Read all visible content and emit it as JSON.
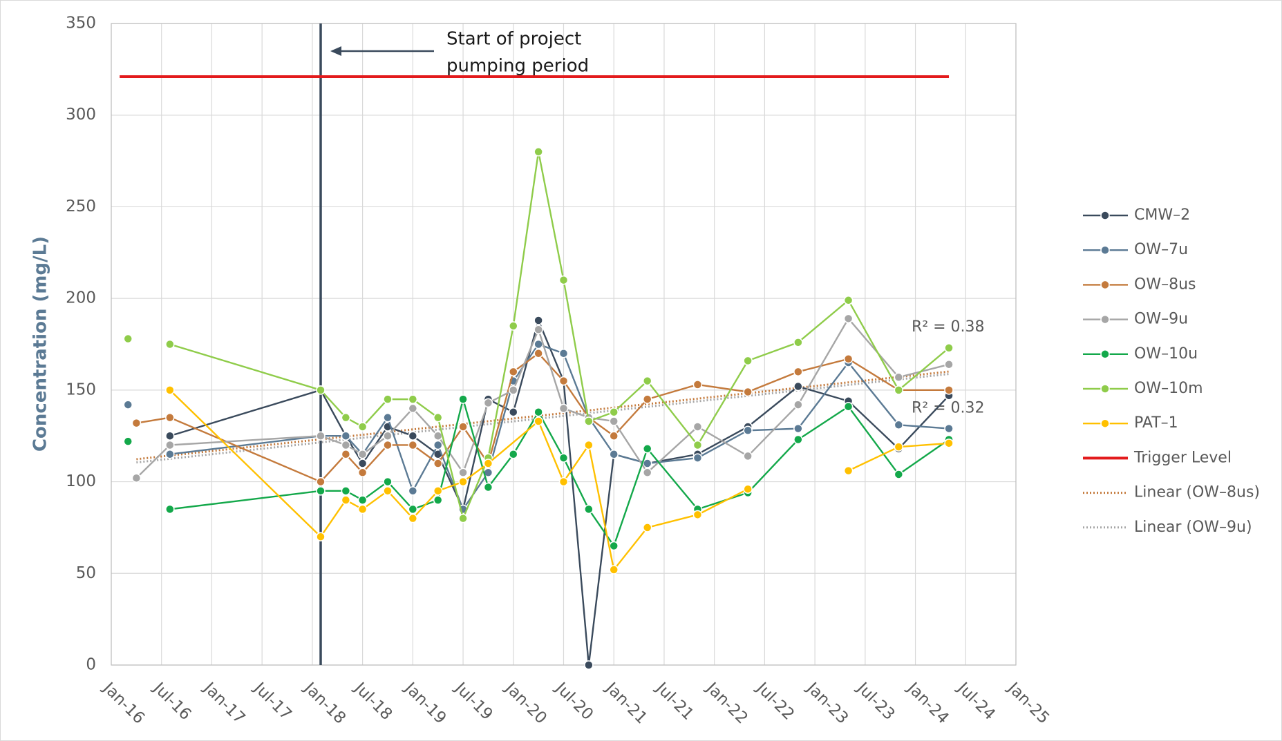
{
  "chart_data": {
    "type": "line",
    "ylabel": "Concentration (mg/L)",
    "xlim": [
      "2016-01",
      "2025-01"
    ],
    "xticks": [
      {
        "value": "2016-01",
        "label": "Jan-16"
      },
      {
        "value": "2016-07",
        "label": "Jul-16"
      },
      {
        "value": "2017-01",
        "label": "Jan-17"
      },
      {
        "value": "2017-07",
        "label": "Jul-17"
      },
      {
        "value": "2018-01",
        "label": "Jan-18"
      },
      {
        "value": "2018-07",
        "label": "Jul-18"
      },
      {
        "value": "2019-01",
        "label": "Jan-19"
      },
      {
        "value": "2019-07",
        "label": "Jul-19"
      },
      {
        "value": "2020-01",
        "label": "Jan-20"
      },
      {
        "value": "2020-07",
        "label": "Jul-20"
      },
      {
        "value": "2021-01",
        "label": "Jan-21"
      },
      {
        "value": "2021-07",
        "label": "Jul-21"
      },
      {
        "value": "2022-01",
        "label": "Jan-22"
      },
      {
        "value": "2022-07",
        "label": "Jul-22"
      },
      {
        "value": "2023-01",
        "label": "Jan-23"
      },
      {
        "value": "2023-07",
        "label": "Jul-23"
      },
      {
        "value": "2024-01",
        "label": "Jan-24"
      },
      {
        "value": "2024-07",
        "label": "Jul-24"
      },
      {
        "value": "2025-01",
        "label": "Jan-25"
      }
    ],
    "ylim": [
      0,
      350
    ],
    "yticks": [
      0,
      50,
      100,
      150,
      200,
      250,
      300,
      350
    ],
    "grid": true,
    "legend": "right",
    "event": {
      "x": "2018-02",
      "color": "#3a4a5c",
      "label": [
        "Start of project",
        "pumping period"
      ]
    },
    "series": [
      {
        "name": "CMW–2",
        "color": "#3a4a5c",
        "x": [
          "2016-08",
          "2018-02",
          "2018-05",
          "2018-07",
          "2018-10",
          "2019-01",
          "2019-04",
          "2019-07",
          "2019-10",
          "2020-01",
          "2020-04",
          "2020-07",
          "2020-10",
          "2021-01",
          "2021-05",
          "2021-11",
          "2022-05",
          "2022-11",
          "2023-05",
          "2023-11",
          "2024-05"
        ],
        "values": [
          125,
          150,
          125,
          110,
          130,
          125,
          115,
          85,
          145,
          138,
          188,
          155,
          0,
          115,
          110,
          115,
          130,
          152,
          144,
          118,
          147
        ]
      },
      {
        "name": "OW–7u",
        "color": "#5b7a94",
        "x": [
          "2016-03",
          "2016-04",
          "2016-08",
          "2018-02",
          "2018-05",
          "2018-07",
          "2018-10",
          "2019-01",
          "2019-04",
          "2019-07",
          "2019-10",
          "2020-01",
          "2020-04",
          "2020-07",
          "2020-10",
          "2021-01",
          "2021-05",
          "2021-11",
          "2022-05",
          "2022-11",
          "2023-05",
          "2023-11",
          "2024-05"
        ],
        "values": [
          142,
          null,
          115,
          125,
          125,
          115,
          135,
          95,
          120,
          85,
          105,
          155,
          175,
          170,
          135,
          115,
          110,
          113,
          128,
          129,
          165,
          131,
          129
        ]
      },
      {
        "name": "OW–8us",
        "color": "#c47a3c",
        "x": [
          "2016-04",
          "2016-08",
          "2018-02",
          "2018-05",
          "2018-07",
          "2018-10",
          "2019-01",
          "2019-04",
          "2019-07",
          "2019-10",
          "2020-01",
          "2020-04",
          "2020-07",
          "2020-10",
          "2021-01",
          "2021-05",
          "2021-11",
          "2022-05",
          "2022-11",
          "2023-05",
          "2023-11",
          "2024-05"
        ],
        "values": [
          132,
          135,
          100,
          115,
          105,
          120,
          120,
          110,
          130,
          110,
          160,
          170,
          155,
          135,
          125,
          145,
          153,
          149,
          160,
          167,
          150,
          150
        ]
      },
      {
        "name": "OW–9u",
        "color": "#a6a6a6",
        "x": [
          "2016-04",
          "2016-08",
          "2018-02",
          "2018-05",
          "2018-07",
          "2018-10",
          "2019-01",
          "2019-04",
          "2019-07",
          "2019-10",
          "2020-01",
          "2020-04",
          "2020-07",
          "2020-10",
          "2021-01",
          "2021-05",
          "2021-11",
          "2022-05",
          "2022-11",
          "2023-05",
          "2023-11",
          "2024-05"
        ],
        "values": [
          102,
          120,
          125,
          120,
          115,
          125,
          140,
          125,
          105,
          143,
          150,
          183,
          140,
          135,
          133,
          105,
          130,
          114,
          142,
          189,
          157,
          164
        ]
      },
      {
        "name": "OW–10u",
        "color": "#13a84a",
        "x": [
          "2016-03",
          "2016-04",
          "2016-08",
          "2018-02",
          "2018-05",
          "2018-07",
          "2018-10",
          "2019-01",
          "2019-04",
          "2019-07",
          "2019-10",
          "2020-01",
          "2020-04",
          "2020-07",
          "2020-10",
          "2021-01",
          "2021-05",
          "2021-11",
          "2022-05",
          "2022-11",
          "2023-05",
          "2023-11",
          "2024-05"
        ],
        "values": [
          122,
          null,
          85,
          95,
          95,
          90,
          100,
          85,
          90,
          145,
          97,
          115,
          138,
          113,
          85,
          65,
          118,
          85,
          94,
          123,
          141,
          104,
          123
        ]
      },
      {
        "name": "OW–10m",
        "color": "#8fcc4a",
        "x": [
          "2016-03",
          "2016-04",
          "2016-08",
          "2018-02",
          "2018-05",
          "2018-07",
          "2018-10",
          "2019-01",
          "2019-04",
          "2019-07",
          "2019-10",
          "2020-01",
          "2020-04",
          "2020-07",
          "2020-10",
          "2021-01",
          "2021-05",
          "2021-11",
          "2022-05",
          "2022-11",
          "2023-05",
          "2023-11",
          "2024-05"
        ],
        "values": [
          178,
          null,
          175,
          150,
          135,
          130,
          145,
          145,
          135,
          80,
          113,
          185,
          280,
          210,
          133,
          138,
          155,
          120,
          166,
          176,
          199,
          150,
          173
        ]
      },
      {
        "name": "PAT–1",
        "color": "#ffc000",
        "x": [
          "2016-08",
          "2018-02",
          "2018-05",
          "2018-07",
          "2018-10",
          "2019-01",
          "2019-04",
          "2019-07",
          "2019-10",
          "2020-04",
          "2020-07",
          "2020-10",
          "2021-01",
          "2021-05",
          "2021-11",
          "2022-05",
          "2022-11",
          "2023-05",
          "2023-11",
          "2024-05"
        ],
        "values": [
          150,
          70,
          90,
          85,
          95,
          80,
          95,
          100,
          110,
          133,
          100,
          120,
          52,
          75,
          82,
          96,
          null,
          106,
          119,
          121
        ]
      },
      {
        "name": "Trigger Level",
        "color": "#e31a1c",
        "markers": false,
        "x": [
          "2016-02",
          "2024-05"
        ],
        "values": [
          321,
          321
        ]
      },
      {
        "name": "Linear (OW–8us)",
        "color": "#c47a3c",
        "trend_of": "OW–8us",
        "r2_label": "R² = 0.38"
      },
      {
        "name": "Linear (OW–9u)",
        "color": "#a6a6a6",
        "trend_of": "OW–9u",
        "r2_label": "R² = 0.32"
      }
    ]
  }
}
